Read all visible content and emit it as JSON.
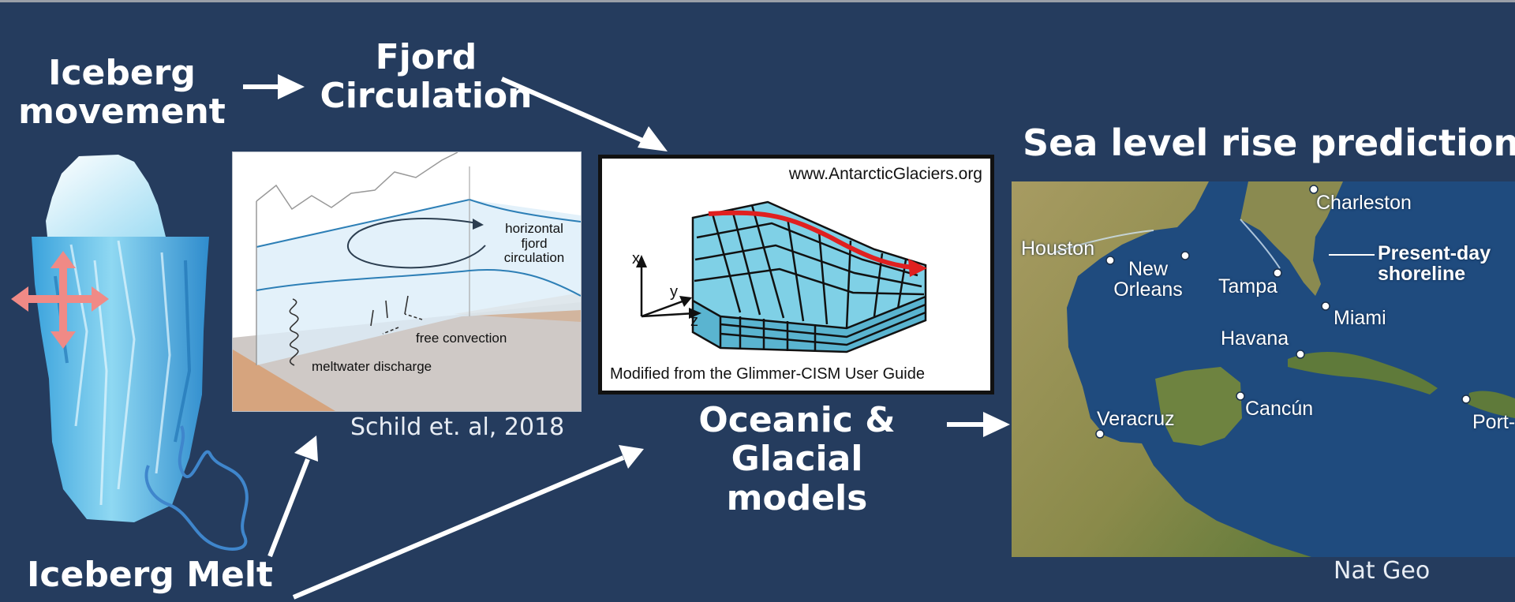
{
  "labels": {
    "iceberg_movement": "Iceberg movement",
    "fjord_circulation": "Fjord Circulation",
    "iceberg_melt": "Iceberg Melt",
    "oceanic_glacial_models": "Oceanic & Glacial models",
    "sea_level_title": "Sea level rise predictions"
  },
  "credits": {
    "fjord_figure": "Schild et. al, 2018",
    "map": "Nat Geo"
  },
  "fjord_figure": {
    "horizontal_circulation": "horizontal fjord circulation",
    "free_convection": "free convection",
    "meltwater_discharge": "meltwater discharge"
  },
  "model_figure": {
    "url": "www.AntarcticGlaciers.org",
    "caption": "Modified from the Glimmer-CISM User Guide",
    "axis_x": "x",
    "axis_y": "y",
    "axis_z": "z"
  },
  "map": {
    "cities": {
      "charleston": "Charleston",
      "houston": "Houston",
      "new_orleans": "New Orleans",
      "tampa": "Tampa",
      "miami": "Miami",
      "havana": "Havana",
      "cancun": "Cancún",
      "veracruz": "Veracruz",
      "port": "Port-"
    },
    "shoreline_label": "Present-day shoreline"
  },
  "colors": {
    "background": "#253c5e",
    "ice_light": "#d9f3fb",
    "ice_mid": "#69c6eb",
    "ice_dark": "#2e86c8",
    "move_arrows": "#f08a86",
    "melt_line": "#3f86cc",
    "grid_cell": "#7fd0e6",
    "flow_arrow": "#e02020"
  }
}
